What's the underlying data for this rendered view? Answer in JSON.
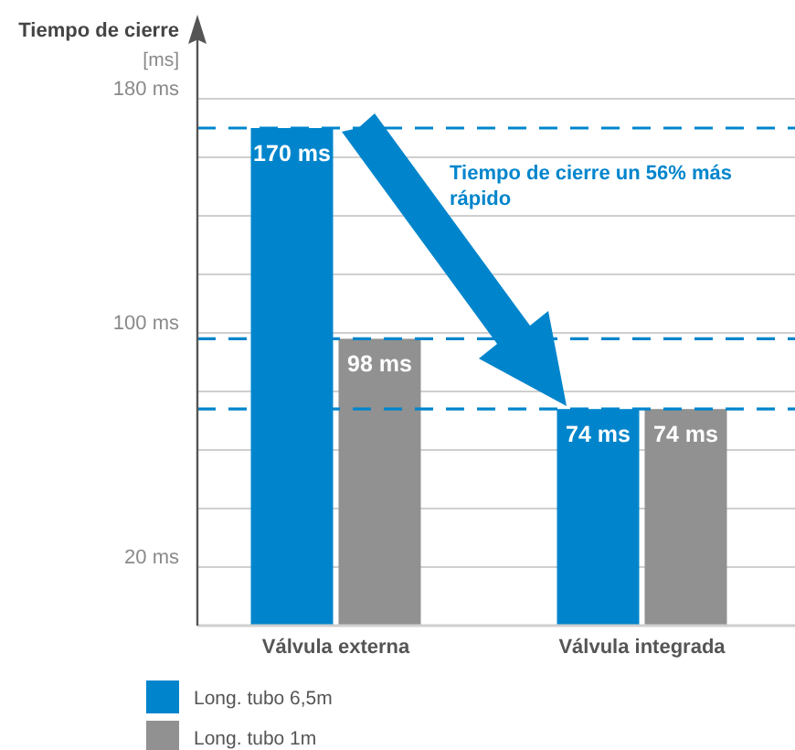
{
  "chart_data": {
    "type": "bar",
    "ylabel": "Tiempo de cierre\n[ms]",
    "categories": [
      "Válvula externa",
      "Válvula integrada"
    ],
    "series": [
      {
        "name": "Long. tubo 6,5m",
        "color": "#0085cc",
        "values": [
          170,
          74
        ],
        "value_labels": [
          "170 ms",
          "74 ms"
        ]
      },
      {
        "name": "Long. tubo 1m",
        "color": "#919191",
        "values": [
          98,
          74
        ],
        "value_labels": [
          "98 ms",
          "74 ms"
        ]
      }
    ],
    "ylim": [
      0,
      180
    ],
    "yticks": [
      {
        "value": 20,
        "label": "20 ms"
      },
      {
        "value": 40,
        "label": null
      },
      {
        "value": 60,
        "label": null
      },
      {
        "value": 80,
        "label": null
      },
      {
        "value": 100,
        "label": "100 ms"
      },
      {
        "value": 120,
        "label": null
      },
      {
        "value": 140,
        "label": null
      },
      {
        "value": 160,
        "label": null
      },
      {
        "value": 180,
        "label": "180 ms"
      }
    ],
    "grid": "y",
    "legend": "bottom left",
    "ref_lines": [
      {
        "axis": "y",
        "value": 170,
        "color": "#0085cc",
        "line_style": "dashed"
      },
      {
        "axis": "y",
        "value": 98,
        "color": "#0085cc",
        "line_style": "dashed"
      },
      {
        "axis": "y",
        "value": 74,
        "color": "#0085cc",
        "line_style": "dashed"
      }
    ],
    "annotations": [
      "Tiempo de cierre un 56% más rápido"
    ]
  }
}
